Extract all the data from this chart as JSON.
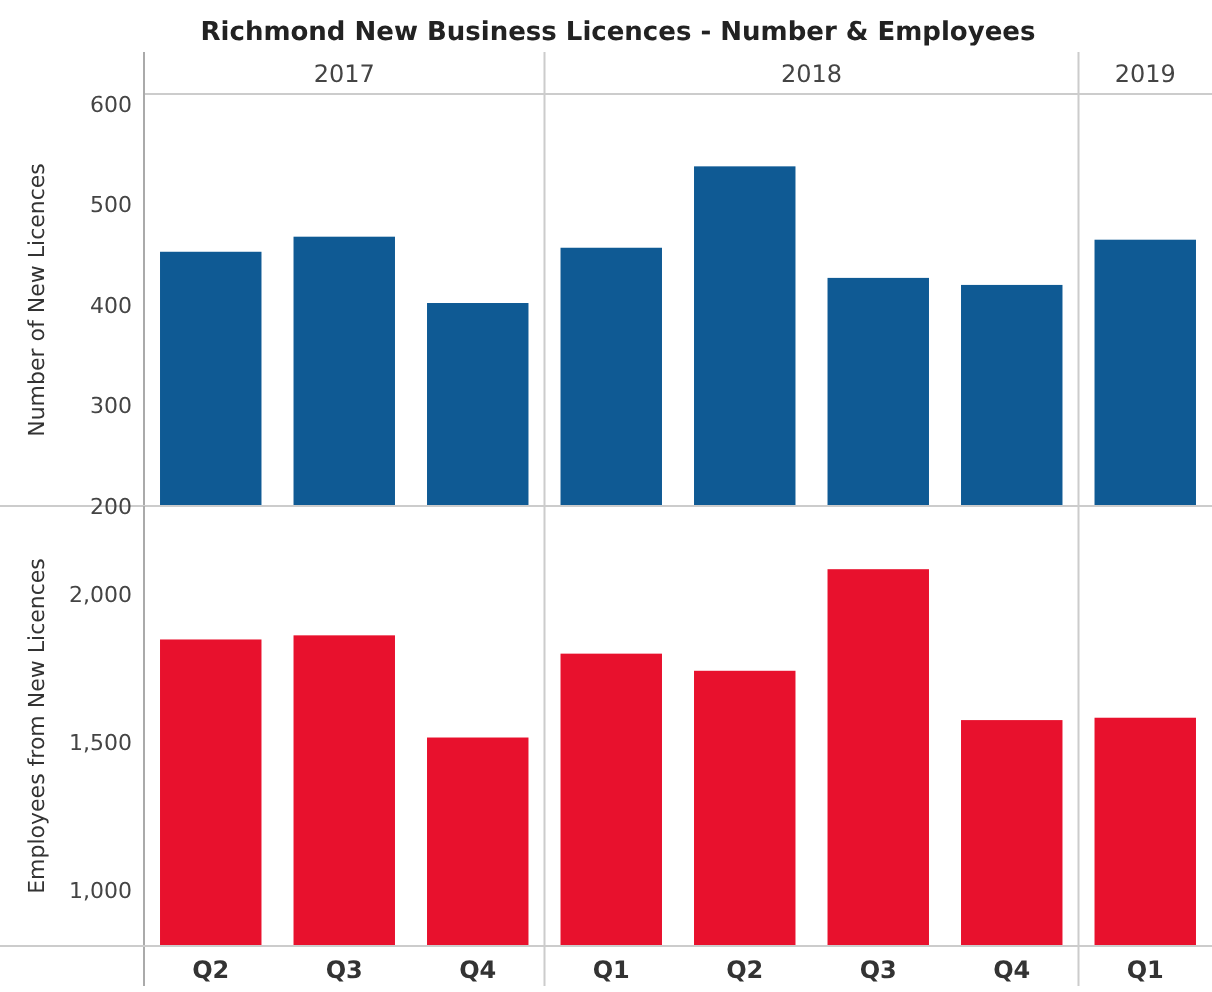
{
  "chart_data": [
    {
      "type": "bar",
      "title": "Richmond New Business Licences - Number & Employees",
      "ylabel": "Number of New Licences",
      "values": [
        453,
        468,
        402,
        457,
        538,
        427,
        420,
        465
      ],
      "color": "#0f5a94",
      "ylim": [
        200,
        610
      ],
      "yticks": [
        200,
        300,
        400,
        500,
        600
      ],
      "tick_labels": "y",
      "annotations": [
        "2017",
        "2018",
        "2019"
      ]
    },
    {
      "type": "bar",
      "ylabel": "Employees from New Licences",
      "categories": [
        "Q2",
        "Q3",
        "Q4",
        "Q1",
        "Q2",
        "Q3",
        "Q4",
        "Q1"
      ],
      "values": [
        1848,
        1862,
        1516,
        1800,
        1742,
        2086,
        1575,
        1583
      ],
      "color": "#e8112d",
      "ylim": [
        810,
        2300
      ],
      "yticks": [
        {
          "value": 1000,
          "label": "1,000"
        },
        {
          "value": 1500,
          "label": "1,500"
        },
        {
          "value": 2000,
          "label": "2,000"
        }
      ]
    }
  ]
}
